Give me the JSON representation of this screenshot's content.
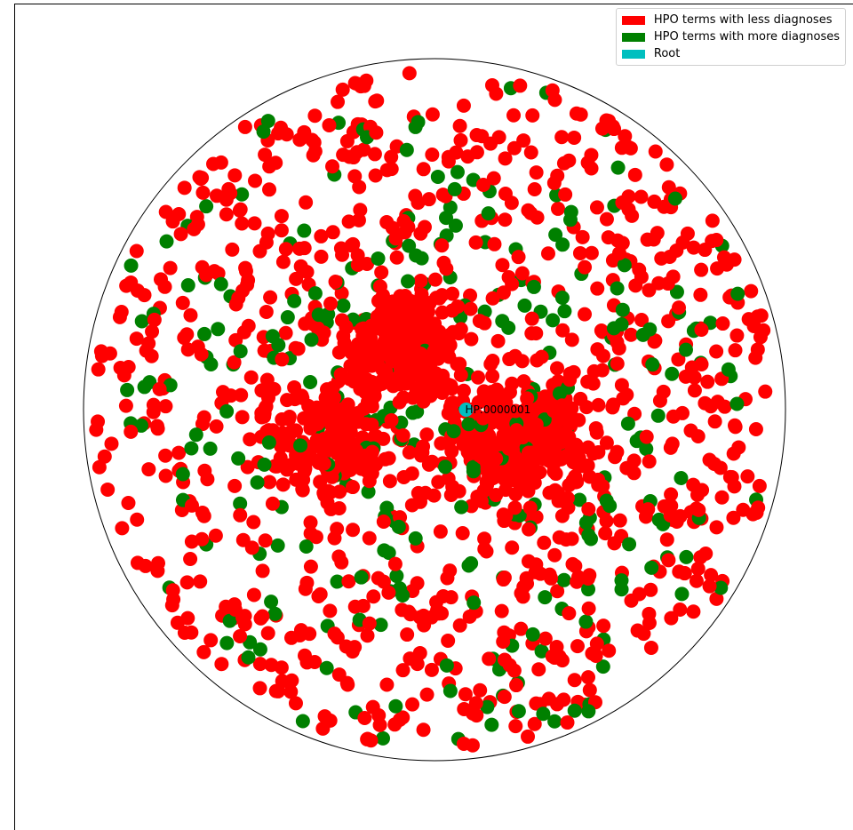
{
  "chart_data": {
    "type": "scatter",
    "title": "",
    "xlabel": "",
    "ylabel": "",
    "grid": false,
    "legend_placement": "top-right",
    "colors": {
      "less": "#ff0000",
      "more": "#008000",
      "root": "#00bfbf",
      "boundary": "#000000"
    },
    "legend": [
      {
        "label": "HPO terms with less diagnoses",
        "color": "#ff0000"
      },
      {
        "label": "HPO terms with more diagnoses",
        "color": "#008000"
      },
      {
        "label": "Root",
        "color": "#00bfbf"
      }
    ],
    "root": {
      "label": "HP:0000001",
      "x": 0.09,
      "y": 0.0
    },
    "boundary": "unit-circle",
    "series": [
      {
        "name": "HPO terms with less diagnoses",
        "color": "#ff0000",
        "count_estimate": 1700,
        "distribution": "dense, concentrated near center and around the root"
      },
      {
        "name": "HPO terms with more diagnoses",
        "color": "#008000",
        "count_estimate": 280,
        "distribution": "scattered, more frequent toward periphery"
      }
    ]
  }
}
